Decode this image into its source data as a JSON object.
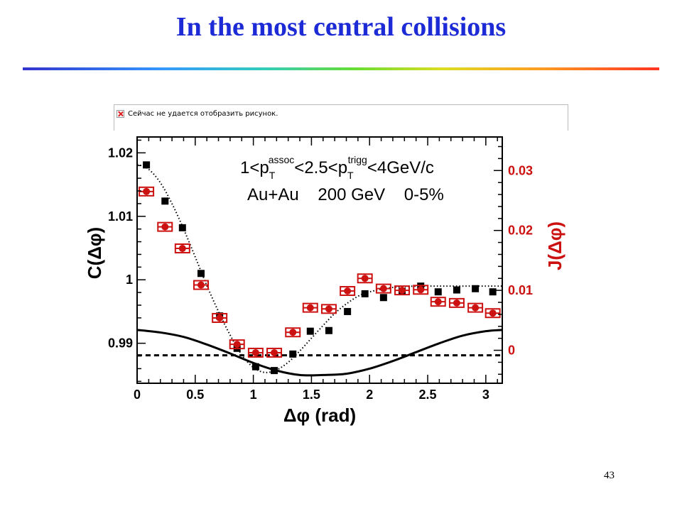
{
  "slide": {
    "title": "In the most central collisions",
    "broken_image_text": "Сейчас не удается отобразить рисунок.",
    "page_number": "43"
  },
  "chart_data": {
    "type": "scatter",
    "title": "",
    "annotations": {
      "kinematics_line": "1<pTassoc<2.5<pTtrigg<4GeV/c",
      "collision_line": "Au+Au    200 GeV    0-5%"
    },
    "xlabel": "Δφ  (rad)",
    "ylabel_left": "C(Δφ)",
    "ylabel_right": "J(Δφ)",
    "xlim": [
      0,
      3.14159
    ],
    "ylim_left": [
      0.9837,
      1.0225
    ],
    "ylim_right": [
      -0.0055,
      0.0356
    ],
    "x_ticks": [
      0,
      0.5,
      1,
      1.5,
      2,
      2.5,
      3
    ],
    "x_tick_labels": [
      "0",
      "0.5",
      "1",
      "1.5",
      "2",
      "2.5",
      "3"
    ],
    "y_left_ticks": [
      0.99,
      1.0,
      1.01,
      1.02
    ],
    "y_left_tick_labels": [
      "0.99",
      "1",
      "1.01",
      "1.02"
    ],
    "y_right_ticks": [
      0,
      0.01,
      0.02,
      0.03
    ],
    "y_right_tick_labels": [
      "0",
      "0.01",
      "0.02",
      "0.03"
    ],
    "grid": false,
    "colors": {
      "black": "#000000",
      "red": "#cc1111"
    },
    "series": [
      {
        "axis": "left",
        "marker": "square",
        "color": "#000000",
        "x": [
          0.08,
          0.24,
          0.39,
          0.55,
          0.71,
          0.86,
          1.02,
          1.18,
          1.34,
          1.49,
          1.65,
          1.81,
          1.96,
          2.12,
          2.28,
          2.44,
          2.59,
          2.75,
          2.91,
          3.06
        ],
        "y": [
          1.0181,
          1.0124,
          1.0082,
          1.001,
          0.9943,
          0.9892,
          0.9863,
          0.9857,
          0.9883,
          0.9919,
          0.992,
          0.995,
          0.9978,
          0.9972,
          0.9982,
          0.999,
          0.9981,
          0.9984,
          0.9986,
          0.9981
        ]
      },
      {
        "axis": "right",
        "marker": "circle",
        "color": "#cc1111",
        "x": [
          0.08,
          0.24,
          0.39,
          0.55,
          0.71,
          0.86,
          1.02,
          1.18,
          1.34,
          1.49,
          1.65,
          1.81,
          1.96,
          2.12,
          2.28,
          2.44,
          2.59,
          2.75,
          2.91,
          3.06
        ],
        "y": [
          0.0265,
          0.0206,
          0.017,
          0.0109,
          0.0054,
          0.001,
          -0.0004,
          -0.0004,
          0.003,
          0.0071,
          0.0069,
          0.0099,
          0.012,
          0.0103,
          0.01,
          0.0101,
          0.0081,
          0.0079,
          0.0071,
          0.0062
        ]
      }
    ],
    "curves": [
      {
        "axis": "left",
        "style": "dotted",
        "color": "#000000",
        "x": [
          0.0,
          0.1,
          0.2,
          0.3,
          0.4,
          0.5,
          0.6,
          0.7,
          0.8,
          0.9,
          1.0,
          1.1,
          1.2,
          1.3,
          1.4,
          1.5,
          1.6,
          1.7,
          1.8,
          1.9,
          2.0,
          2.2,
          2.4,
          2.6,
          2.8,
          3.0,
          3.14
        ],
        "y": [
          1.0182,
          1.0174,
          1.0153,
          1.012,
          1.008,
          1.0036,
          0.9991,
          0.995,
          0.9913,
          0.9882,
          0.9862,
          0.9854,
          0.9858,
          0.987,
          0.9888,
          0.9908,
          0.9928,
          0.9947,
          0.9962,
          0.9974,
          0.9981,
          0.9988,
          0.999,
          0.999,
          0.999,
          0.999,
          0.999
        ]
      },
      {
        "axis": "left",
        "style": "solid",
        "color": "#000000",
        "x": [
          0.0,
          0.2,
          0.4,
          0.6,
          0.8,
          1.0,
          1.2,
          1.4,
          1.6,
          1.8,
          2.0,
          2.2,
          2.4,
          2.6,
          2.8,
          3.0,
          3.14
        ],
        "y": [
          0.9921,
          0.9917,
          0.991,
          0.9898,
          0.9884,
          0.9869,
          0.9857,
          0.985,
          0.985,
          0.9852,
          0.986,
          0.9872,
          0.9886,
          0.99,
          0.9912,
          0.9919,
          0.9921
        ]
      },
      {
        "axis": "left",
        "style": "dashed",
        "color": "#000000",
        "x": [
          0.0,
          3.14
        ],
        "y": [
          0.9881,
          0.9881
        ]
      }
    ]
  }
}
